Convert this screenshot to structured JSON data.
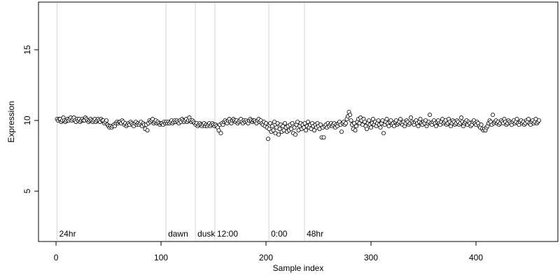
{
  "chart_data": {
    "type": "scatter",
    "xlabel": "Sample index",
    "ylabel": "Expression",
    "xlim": [
      -16.7,
      478
    ],
    "ylim": [
      1.44,
      18.37
    ],
    "xticks": [
      0,
      100,
      200,
      300,
      400
    ],
    "yticks": [
      5,
      10,
      15
    ],
    "marker_color": "#ffffff",
    "edge_color": "#000000",
    "annotation_color": "#aaaaaa",
    "annotations": [
      {
        "x": 1,
        "label": "24hr"
      },
      {
        "x": 104.7,
        "label": "dawn"
      },
      {
        "x": 132.7,
        "label": "dusk"
      },
      {
        "x": 151.3,
        "label": "12:00"
      },
      {
        "x": 202.7,
        "label": "0:00"
      },
      {
        "x": 236.7,
        "label": "48hr"
      }
    ],
    "x": [
      1,
      2,
      3,
      4,
      5,
      6,
      7,
      8,
      9,
      10,
      11,
      12,
      13,
      14,
      15,
      16,
      17,
      18,
      19,
      20,
      21,
      22,
      23,
      24,
      25,
      26,
      27,
      28,
      29,
      30,
      31,
      32,
      33,
      34,
      35,
      36,
      37,
      38,
      39,
      40,
      41,
      42,
      43,
      44,
      45,
      46,
      47,
      48,
      49,
      50,
      51,
      52,
      53,
      54,
      55,
      56,
      57,
      58,
      59,
      60,
      61,
      62,
      63,
      64,
      65,
      66,
      67,
      68,
      69,
      70,
      71,
      72,
      73,
      74,
      75,
      76,
      77,
      78,
      79,
      80,
      81,
      82,
      83,
      84,
      85,
      86,
      87,
      88,
      89,
      90,
      91,
      92,
      93,
      94,
      95,
      96,
      97,
      98,
      99,
      100,
      101,
      102,
      103,
      104,
      105,
      106,
      107,
      108,
      109,
      110,
      111,
      112,
      113,
      114,
      115,
      116,
      117,
      118,
      119,
      120,
      121,
      122,
      123,
      124,
      125,
      126,
      127,
      128,
      129,
      130,
      131,
      132,
      133,
      134,
      135,
      136,
      137,
      138,
      139,
      140,
      141,
      142,
      143,
      144,
      145,
      146,
      147,
      148,
      149,
      150,
      151,
      152,
      153,
      154,
      155,
      156,
      157,
      158,
      159,
      160,
      161,
      162,
      163,
      164,
      165,
      166,
      167,
      168,
      169,
      170,
      171,
      172,
      173,
      174,
      175,
      176,
      177,
      178,
      179,
      180,
      181,
      182,
      183,
      184,
      185,
      186,
      187,
      188,
      189,
      190,
      191,
      192,
      193,
      194,
      195,
      196,
      197,
      198,
      199,
      200,
      201,
      202,
      203,
      204,
      205,
      206,
      207,
      208,
      209,
      210,
      211,
      212,
      213,
      214,
      215,
      216,
      217,
      218,
      219,
      220,
      221,
      222,
      223,
      224,
      225,
      226,
      227,
      228,
      229,
      230,
      231,
      232,
      233,
      234,
      235,
      236,
      237,
      238,
      239,
      240,
      241,
      242,
      243,
      244,
      245,
      246,
      247,
      248,
      249,
      250,
      251,
      252,
      253,
      254,
      255,
      256,
      257,
      258,
      259,
      260,
      261,
      262,
      263,
      264,
      265,
      266,
      267,
      268,
      269,
      270,
      271,
      272,
      273,
      274,
      275,
      276,
      277,
      278,
      279,
      280,
      281,
      282,
      283,
      284,
      285,
      286,
      287,
      288,
      289,
      290,
      291,
      292,
      293,
      294,
      295,
      296,
      297,
      298,
      299,
      300,
      301,
      302,
      303,
      304,
      305,
      306,
      307,
      308,
      309,
      310,
      311,
      312,
      313,
      314,
      315,
      316,
      317,
      318,
      319,
      320,
      321,
      322,
      323,
      324,
      325,
      326,
      327,
      328,
      329,
      330,
      331,
      332,
      333,
      334,
      335,
      336,
      337,
      338,
      339,
      340,
      341,
      342,
      343,
      344,
      345,
      346,
      347,
      348,
      349,
      350,
      351,
      352,
      353,
      354,
      355,
      356,
      357,
      358,
      359,
      360,
      361,
      362,
      363,
      364,
      365,
      366,
      367,
      368,
      369,
      370,
      371,
      372,
      373,
      374,
      375,
      376,
      377,
      378,
      379,
      380,
      381,
      382,
      383,
      384,
      385,
      386,
      387,
      388,
      389,
      390,
      391,
      392,
      393,
      394,
      395,
      396,
      397,
      398,
      399,
      400,
      401,
      402,
      403,
      404,
      405,
      406,
      407,
      408,
      409,
      410,
      411,
      412,
      413,
      414,
      415,
      416,
      417,
      418,
      419,
      420,
      421,
      422,
      423,
      424,
      425,
      426,
      427,
      428,
      429,
      430,
      431,
      432,
      433,
      434,
      435,
      436,
      437,
      438,
      439,
      440,
      441,
      442,
      443,
      444,
      445,
      446,
      447,
      448,
      449,
      450,
      451,
      452,
      453,
      454,
      455,
      456,
      457,
      458,
      459,
      460
    ],
    "values": [
      10.1,
      10.0,
      10.1,
      10.1,
      9.9,
      10.0,
      10.2,
      10.0,
      9.9,
      10.0,
      10.1,
      10.0,
      10.1,
      10.2,
      10.0,
      10.1,
      10.2,
      10.0,
      9.9,
      10.1,
      10.0,
      10.1,
      9.9,
      10.0,
      10.1,
      10.0,
      10.0,
      10.2,
      10.1,
      10.0,
      9.9,
      10.0,
      10.1,
      10.0,
      9.9,
      10.0,
      10.1,
      9.9,
      10.0,
      10.1,
      10.0,
      9.9,
      10.1,
      10.0,
      10.0,
      9.8,
      9.9,
      10.0,
      9.7,
      9.6,
      9.5,
      9.6,
      9.5,
      9.6,
      9.7,
      9.6,
      9.8,
      9.9,
      9.8,
      9.9,
      9.9,
      9.8,
      10.0,
      9.9,
      9.7,
      9.8,
      9.6,
      9.7,
      9.8,
      9.7,
      9.9,
      9.8,
      9.7,
      9.6,
      9.8,
      9.9,
      9.7,
      9.8,
      9.7,
      9.8,
      9.9,
      9.6,
      9.8,
      9.7,
      9.4,
      9.7,
      9.3,
      9.8,
      10.0,
      9.9,
      10.0,
      10.1,
      9.8,
      9.9,
      10.0,
      9.8,
      9.9,
      9.8,
      9.7,
      9.8,
      9.8,
      9.7,
      9.9,
      9.8,
      9.9,
      9.8,
      9.9,
      9.8,
      9.9,
      10.0,
      9.8,
      9.9,
      10.0,
      9.9,
      10.0,
      9.9,
      9.8,
      10.0,
      9.9,
      10.1,
      10.0,
      9.9,
      10.0,
      10.1,
      9.9,
      10.0,
      10.2,
      10.0,
      9.9,
      10.0,
      9.9,
      9.8,
      9.7,
      9.8,
      9.6,
      9.7,
      9.8,
      9.7,
      9.6,
      9.7,
      9.8,
      9.6,
      9.7,
      9.6,
      9.7,
      9.8,
      9.6,
      9.7,
      9.8,
      9.7,
      9.6,
      9.7,
      9.6,
      9.5,
      9.3,
      9.7,
      9.1,
      9.8,
      9.7,
      9.9,
      10.0,
      9.9,
      9.8,
      10.0,
      10.1,
      9.9,
      9.8,
      10.0,
      10.1,
      10.0,
      9.9,
      10.0,
      9.8,
      9.9,
      10.0,
      10.1,
      9.9,
      9.8,
      10.0,
      9.9,
      10.0,
      9.9,
      9.8,
      10.0,
      10.1,
      10.0,
      9.9,
      10.0,
      10.0,
      9.9,
      9.8,
      10.0,
      10.1,
      9.9,
      10.0,
      9.8,
      9.7,
      9.9,
      9.6,
      9.8,
      9.5,
      8.7,
      9.4,
      9.8,
      9.2,
      9.6,
      9.3,
      9.9,
      9.1,
      9.5,
      9.8,
      9.0,
      9.4,
      9.7,
      9.2,
      9.6,
      9.3,
      9.8,
      9.5,
      9.2,
      9.6,
      9.3,
      9.7,
      9.4,
      9.8,
      9.1,
      9.5,
      9.0,
      9.7,
      9.9,
      9.3,
      9.6,
      9.8,
      9.4,
      9.7,
      9.5,
      9.8,
      9.3,
      9.6,
      9.9,
      9.5,
      9.7,
      9.4,
      9.8,
      9.6,
      9.3,
      9.7,
      9.5,
      9.8,
      9.6,
      9.4,
      9.7,
      8.8,
      9.5,
      8.8,
      9.6,
      9.7,
      9.5,
      9.8,
      9.6,
      9.7,
      9.8,
      9.6,
      9.7,
      9.8,
      9.5,
      9.7,
      9.6,
      9.8,
      9.9,
      9.7,
      9.2,
      9.8,
      9.9,
      9.7,
      9.8,
      10.1,
      10.3,
      10.6,
      10.4,
      10.0,
      9.7,
      9.4,
      9.8,
      9.3,
      9.6,
      9.9,
      10.1,
      9.8,
      10.2,
      10.0,
      9.7,
      10.1,
      9.9,
      9.6,
      9.4,
      9.8,
      10.0,
      9.7,
      9.5,
      9.8,
      10.1,
      9.7,
      9.9,
      9.6,
      9.8,
      10.0,
      9.7,
      9.5,
      9.8,
      10.0,
      9.1,
      9.7,
      9.9,
      10.1,
      9.8,
      9.6,
      9.9,
      10.0,
      9.7,
      9.8,
      9.6,
      9.9,
      10.0,
      9.7,
      9.8,
      9.9,
      10.1,
      9.8,
      9.7,
      9.9,
      9.6,
      9.8,
      10.0,
      9.9,
      9.7,
      9.8,
      10.2,
      9.9,
      9.8,
      9.7,
      9.9,
      10.0,
      9.8,
      9.6,
      9.9,
      10.1,
      9.8,
      9.7,
      9.9,
      9.8,
      10.0,
      9.6,
      9.8,
      9.9,
      10.4,
      9.8,
      9.7,
      9.9,
      10.0,
      9.8,
      9.6,
      9.9,
      10.0,
      9.8,
      9.7,
      9.9,
      10.1,
      9.8,
      9.9,
      10.0,
      9.7,
      9.8,
      10.1,
      9.9,
      9.6,
      9.8,
      10.0,
      9.9,
      9.7,
      9.8,
      10.0,
      9.9,
      9.7,
      9.8,
      10.2,
      9.9,
      9.6,
      9.8,
      9.9,
      10.0,
      9.7,
      9.9,
      9.8,
      9.6,
      9.7,
      9.9,
      10.0,
      9.8,
      9.7,
      9.9,
      9.8,
      9.6,
      9.5,
      9.7,
      9.4,
      9.3,
      9.4,
      9.3,
      9.5,
      9.6,
      9.8,
      10.0,
      9.9,
      9.7,
      10.4,
      9.8,
      9.9,
      10.0,
      9.8,
      9.9,
      9.7,
      9.8,
      10.0,
      9.9,
      9.8,
      10.1,
      9.9,
      9.7,
      9.8,
      10.0,
      9.9,
      9.8,
      9.7,
      9.9,
      10.0,
      9.8,
      9.9,
      10.1,
      9.8,
      9.7,
      9.9,
      10.0,
      9.8,
      9.9,
      9.7,
      9.8,
      10.0,
      9.9,
      10.1,
      9.8,
      9.7,
      9.9,
      10.0,
      9.8,
      9.9,
      10.1,
      9.8,
      9.9,
      10.0
    ]
  }
}
